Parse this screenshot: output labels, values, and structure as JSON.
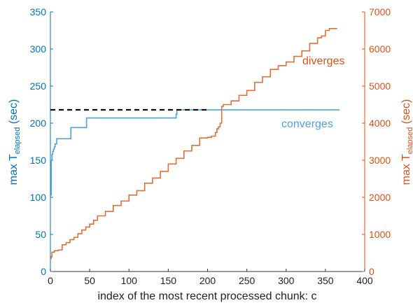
{
  "chart_data": {
    "type": "line",
    "title": "",
    "xlabel": "index of the most recent processed chunk: c",
    "ylabel_left": {
      "prefix": "max T",
      "sub": "elapsed",
      "suffix": " (sec)"
    },
    "ylabel_right": {
      "prefix": "max T",
      "sub": "elapsed",
      "suffix": " (sec)"
    },
    "xlim": [
      0,
      400
    ],
    "ylim_left": [
      0,
      350
    ],
    "ylim_right": [
      0,
      7000
    ],
    "xticks": [
      "0",
      "50",
      "100",
      "150",
      "200",
      "250",
      "300",
      "350",
      "400"
    ],
    "yticks_left": [
      "0",
      "50",
      "100",
      "150",
      "200",
      "250",
      "300",
      "350"
    ],
    "yticks_right": [
      "0",
      "1000",
      "2000",
      "3000",
      "4000",
      "5000",
      "6000",
      "7000"
    ],
    "grid": false,
    "colors": {
      "left_axis": "#0072BD",
      "right_axis": "#D95319",
      "converge_line": "#4DA3D6",
      "diverge_line": "#E0703A",
      "reference_line": "#000000"
    },
    "series": [
      {
        "name": "converges",
        "axis": "left",
        "x": [
          0,
          1,
          2,
          3,
          4,
          5,
          6,
          8,
          10,
          12,
          15,
          18,
          20,
          22,
          24,
          26,
          28,
          30,
          32,
          34,
          36,
          38,
          40,
          42,
          44,
          46,
          60,
          80,
          100,
          120,
          140,
          155,
          158,
          160,
          161,
          163,
          200,
          250,
          300,
          350,
          368
        ],
        "y": [
          103,
          150,
          158,
          162,
          165,
          168,
          172,
          179,
          179,
          179,
          179,
          179,
          179,
          179,
          179,
          194,
          194,
          194,
          194,
          194,
          194,
          194,
          194,
          194,
          194,
          207,
          207,
          207,
          207,
          207,
          207,
          207,
          207,
          212,
          218,
          218,
          218,
          218,
          218,
          218,
          218
        ]
      },
      {
        "name": "diverges",
        "axis": "right",
        "x": [
          0,
          1,
          2,
          5,
          10,
          15,
          20,
          25,
          30,
          35,
          40,
          45,
          50,
          55,
          60,
          70,
          80,
          90,
          100,
          110,
          120,
          130,
          140,
          150,
          160,
          170,
          180,
          190,
          195,
          200,
          205,
          210,
          212,
          214,
          216,
          218,
          220,
          230,
          240,
          250,
          260,
          270,
          280,
          290,
          300,
          310,
          320,
          330,
          340,
          345,
          350,
          355,
          360,
          365
        ],
        "y": [
          350,
          400,
          520,
          560,
          580,
          720,
          780,
          860,
          920,
          1020,
          1120,
          1200,
          1280,
          1380,
          1500,
          1620,
          1780,
          1900,
          2060,
          2180,
          2380,
          2520,
          2700,
          2900,
          3050,
          3250,
          3400,
          3600,
          3600,
          3620,
          3650,
          3750,
          3850,
          3900,
          4000,
          4450,
          4500,
          4600,
          4750,
          4880,
          5100,
          5250,
          5450,
          5550,
          5650,
          5800,
          5950,
          6150,
          6300,
          6350,
          6500,
          6550,
          6550,
          6550
        ]
      }
    ],
    "reference_line": {
      "axis": "left",
      "y": 218,
      "x_start": 0,
      "x_end": 200,
      "style": "dashed"
    },
    "annotations": [
      {
        "text": "diverges",
        "color": "#D95319"
      },
      {
        "text": "converges",
        "color": "#4DA3D6"
      }
    ]
  }
}
